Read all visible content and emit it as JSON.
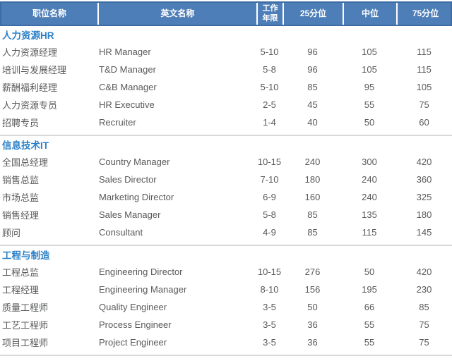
{
  "colors": {
    "header_bg": "#4e7eb8",
    "header_border": "#3d6ca3",
    "header_text": "#ffffff",
    "section_title_text": "#2b80c8",
    "body_text": "#58595b",
    "divider": "#d8d8d8"
  },
  "table": {
    "columns": [
      "职位名称",
      "英文名称",
      "工作\n年限",
      "25分位",
      "中位",
      "75分位"
    ],
    "sections": [
      {
        "title": "人力资源HR",
        "rows": [
          {
            "position_cn": "人力资源经理",
            "position_en": "HR Manager",
            "years": "5-10",
            "p25": "96",
            "median": "105",
            "p75": "115"
          },
          {
            "position_cn": "培训与发展经理",
            "position_en": "T&D Manager",
            "years": "5-8",
            "p25": "96",
            "median": "105",
            "p75": "115"
          },
          {
            "position_cn": "薪酬福利经理",
            "position_en": "C&B Manager",
            "years": "5-10",
            "p25": "85",
            "median": "95",
            "p75": "105"
          },
          {
            "position_cn": "人力资源专员",
            "position_en": "HR Executive",
            "years": "2-5",
            "p25": "45",
            "median": "55",
            "p75": "75"
          },
          {
            "position_cn": "招聘专员",
            "position_en": "Recruiter",
            "years": "1-4",
            "p25": "40",
            "median": "50",
            "p75": "60"
          }
        ]
      },
      {
        "title": "信息技术IT",
        "rows": [
          {
            "position_cn": "全国总经理",
            "position_en": "Country Manager",
            "years": "10-15",
            "p25": "240",
            "median": "300",
            "p75": "420"
          },
          {
            "position_cn": "销售总监",
            "position_en": "Sales Director",
            "years": "7-10",
            "p25": "180",
            "median": "240",
            "p75": "360"
          },
          {
            "position_cn": "市场总监",
            "position_en": "Marketing Director",
            "years": "6-9",
            "p25": "160",
            "median": "240",
            "p75": "325"
          },
          {
            "position_cn": "销售经理",
            "position_en": "Sales Manager",
            "years": "5-8",
            "p25": "85",
            "median": "135",
            "p75": "180"
          },
          {
            "position_cn": "顾问",
            "position_en": "Consultant",
            "years": "4-9",
            "p25": "85",
            "median": "115",
            "p75": "145"
          }
        ]
      },
      {
        "title": "工程与制造",
        "rows": [
          {
            "position_cn": "工程总监",
            "position_en": "Engineering Director",
            "years": "10-15",
            "p25": "276",
            "median": "50",
            "p75": "420"
          },
          {
            "position_cn": "工程经理",
            "position_en": "Engineering Manager",
            "years": "8-10",
            "p25": "156",
            "median": "195",
            "p75": "230"
          },
          {
            "position_cn": "质量工程师",
            "position_en": "Quality Engineer",
            "years": "3-5",
            "p25": "50",
            "median": "66",
            "p75": "85"
          },
          {
            "position_cn": "工艺工程师",
            "position_en": "Process Engineer",
            "years": "3-5",
            "p25": "36",
            "median": "55",
            "p75": "75"
          },
          {
            "position_cn": "项目工程师",
            "position_en": "Project Engineer",
            "years": "3-5",
            "p25": "36",
            "median": "55",
            "p75": "75"
          }
        ]
      }
    ]
  }
}
